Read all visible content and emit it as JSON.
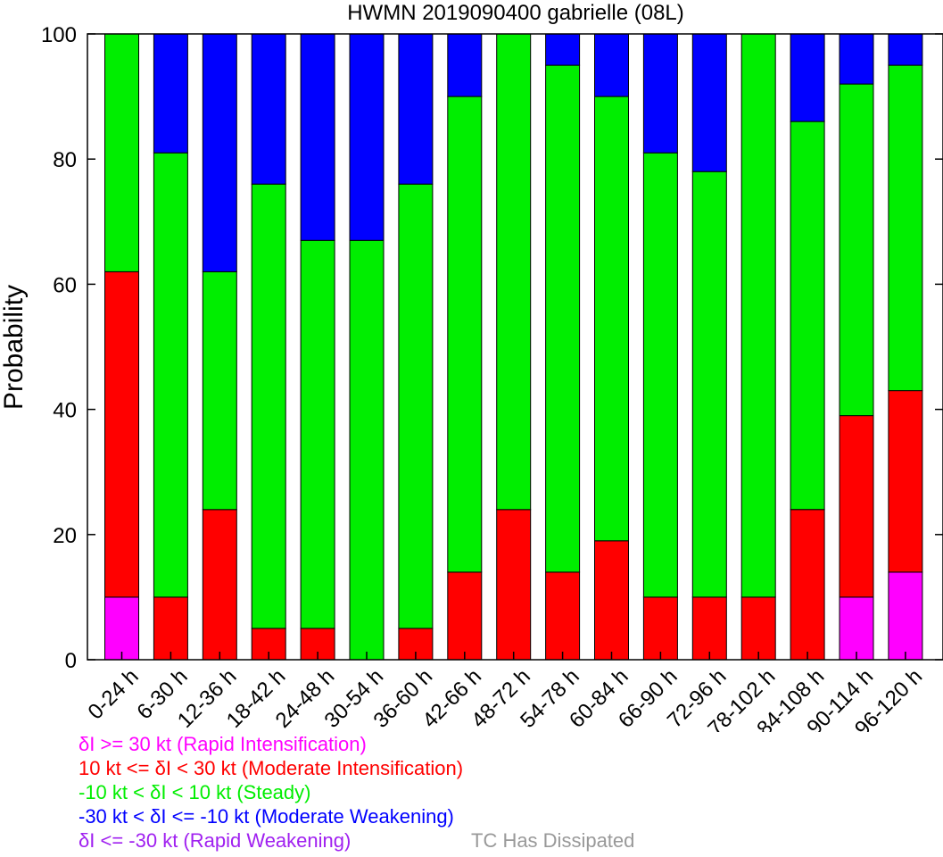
{
  "chart_data": {
    "type": "bar",
    "stacked": true,
    "title": "HWMN 2019090400 gabrielle (08L)",
    "xlabel": "",
    "ylabel": "Probability",
    "ylim": [
      0,
      100
    ],
    "yticks": [
      0,
      20,
      40,
      60,
      80,
      100
    ],
    "categories": [
      "0-24 h",
      "6-30 h",
      "12-36 h",
      "18-42 h",
      "24-48 h",
      "30-54 h",
      "36-60 h",
      "42-66 h",
      "48-72 h",
      "54-78 h",
      "60-84 h",
      "66-90 h",
      "72-96 h",
      "78-102 h",
      "84-108 h",
      "90-114 h",
      "96-120 h"
    ],
    "series": [
      {
        "name": "Rapid Intensification",
        "color": "#ff00ff",
        "values": [
          10,
          0,
          0,
          0,
          0,
          0,
          0,
          0,
          0,
          0,
          0,
          0,
          0,
          0,
          0,
          10,
          14
        ]
      },
      {
        "name": "Moderate Intensification",
        "color": "#ff0000",
        "values": [
          52,
          10,
          24,
          5,
          5,
          0,
          5,
          14,
          24,
          14,
          19,
          10,
          10,
          10,
          24,
          29,
          29
        ]
      },
      {
        "name": "Steady",
        "color": "#00ee00",
        "values": [
          38,
          71,
          38,
          71,
          62,
          67,
          71,
          76,
          76,
          81,
          71,
          71,
          68,
          90,
          62,
          53,
          52
        ]
      },
      {
        "name": "Moderate Weakening",
        "color": "#0000ff",
        "values": [
          0,
          19,
          38,
          24,
          33,
          33,
          24,
          10,
          0,
          5,
          10,
          19,
          22,
          0,
          14,
          8,
          5
        ]
      },
      {
        "name": "Rapid Weakening",
        "color": "#a020f0",
        "values": [
          0,
          0,
          0,
          0,
          0,
          0,
          0,
          0,
          0,
          0,
          0,
          0,
          0,
          0,
          0,
          0,
          0
        ]
      }
    ],
    "grid": false
  },
  "legend": {
    "rapid_intensification": "δI >= 30 kt (Rapid Intensification)",
    "moderate_intensification": "10 kt <= δI < 30 kt (Moderate Intensification)",
    "steady": "-10 kt < δI < 10 kt (Steady)",
    "moderate_weakening": "-30 kt < δI <= -10 kt (Moderate Weakening)",
    "rapid_weakening": "δI <= -30 kt (Rapid Weakening)",
    "dissipated": "TC Has Dissipated"
  },
  "colors": {
    "rapid_intensification": "#ff00ff",
    "moderate_intensification": "#ff0000",
    "steady": "#00ee00",
    "moderate_weakening": "#0000ff",
    "rapid_weakening": "#a020f0",
    "dissipated": "#999999"
  }
}
